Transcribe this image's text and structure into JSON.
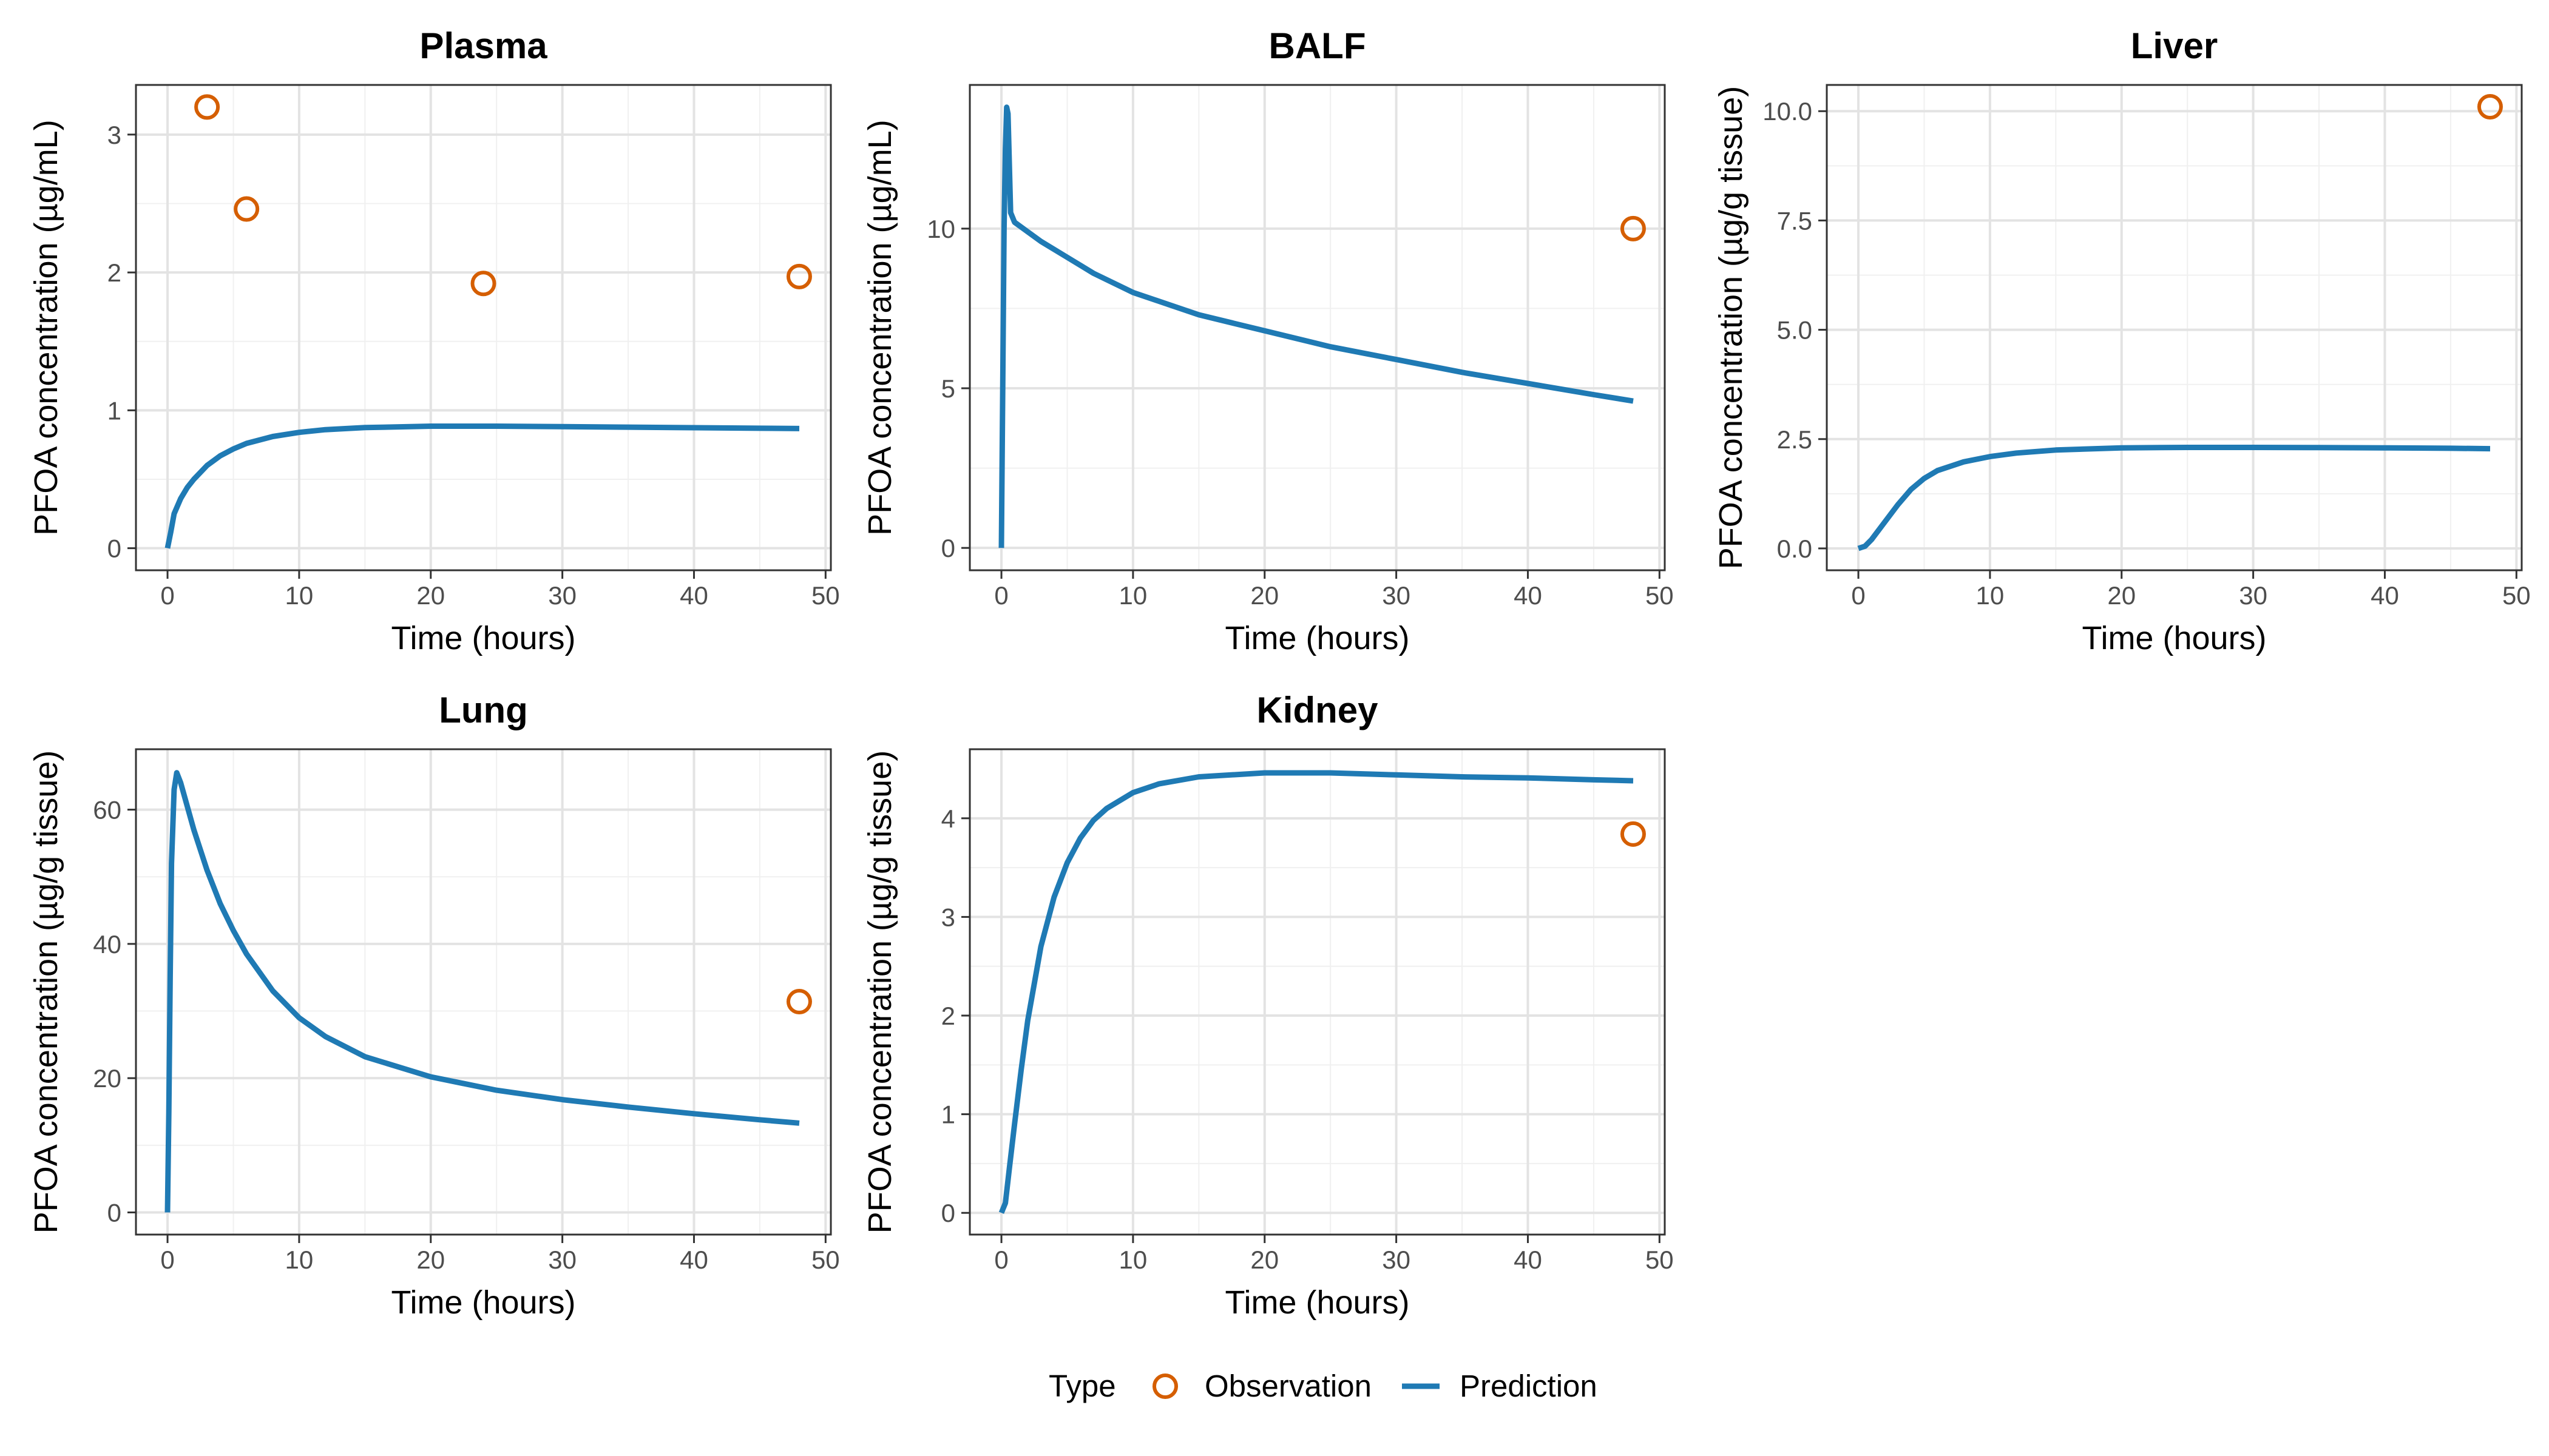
{
  "figure": {
    "legend": {
      "title": "Type",
      "position": "bottom",
      "items": [
        {
          "label": "Observation",
          "kind": "point",
          "color": "#D55E00"
        },
        {
          "label": "Prediction",
          "kind": "line",
          "color": "#1F7AB4"
        }
      ]
    }
  },
  "chart_data": [
    {
      "type": "line",
      "title": "Plasma",
      "xlabel": "Time (hours)",
      "ylabel": "PFOA concentration (µg/mL)",
      "xlim": [
        -2.4,
        50.4
      ],
      "ylim": [
        -0.16,
        3.36
      ],
      "xticks": [
        0,
        10,
        20,
        30,
        40,
        50
      ],
      "xtick_labels": [
        "0",
        "10",
        "20",
        "30",
        "40",
        "50"
      ],
      "yticks": [
        0,
        1,
        2,
        3
      ],
      "ytick_labels": [
        "0",
        "1",
        "2",
        "3"
      ],
      "grid": true,
      "series": [
        {
          "name": "Observation",
          "kind": "points",
          "x": [
            3,
            6,
            24,
            48
          ],
          "y": [
            3.2,
            2.46,
            1.92,
            1.97
          ]
        },
        {
          "name": "Prediction",
          "kind": "line",
          "x": [
            0,
            0.25,
            0.5,
            1,
            1.5,
            2,
            3,
            4,
            5,
            6,
            8,
            10,
            12,
            15,
            20,
            25,
            30,
            35,
            40,
            45,
            48
          ],
          "y": [
            0,
            0.12,
            0.25,
            0.36,
            0.44,
            0.5,
            0.6,
            0.67,
            0.72,
            0.76,
            0.81,
            0.84,
            0.86,
            0.875,
            0.885,
            0.885,
            0.882,
            0.878,
            0.874,
            0.87,
            0.868
          ]
        }
      ]
    },
    {
      "type": "line",
      "title": "BALF",
      "xlabel": "Time (hours)",
      "ylabel": "PFOA concentration (µg/mL)",
      "xlim": [
        -2.4,
        50.4
      ],
      "ylim": [
        -0.7,
        14.5
      ],
      "xticks": [
        0,
        10,
        20,
        30,
        40,
        50
      ],
      "xtick_labels": [
        "0",
        "10",
        "20",
        "30",
        "40",
        "50"
      ],
      "yticks": [
        0,
        5,
        10
      ],
      "ytick_labels": [
        "0",
        "5",
        "10"
      ],
      "grid": true,
      "series": [
        {
          "name": "Observation",
          "kind": "points",
          "x": [
            48
          ],
          "y": [
            10
          ]
        },
        {
          "name": "Prediction",
          "kind": "line",
          "x": [
            0,
            0.1,
            0.2,
            0.3,
            0.4,
            0.5,
            0.7,
            1,
            2,
            3,
            5,
            7,
            10,
            15,
            20,
            25,
            30,
            35,
            40,
            45,
            48
          ],
          "y": [
            0,
            5,
            10,
            12.5,
            13.8,
            13.6,
            10.5,
            10.2,
            9.9,
            9.6,
            9.1,
            8.6,
            8.0,
            7.3,
            6.8,
            6.3,
            5.9,
            5.5,
            5.15,
            4.8,
            4.6
          ]
        }
      ]
    },
    {
      "type": "line",
      "title": "Liver",
      "xlabel": "Time (hours)",
      "ylabel": "PFOA concentration (µg/g tissue)",
      "xlim": [
        -2.4,
        50.4
      ],
      "ylim": [
        -0.5,
        10.6
      ],
      "xticks": [
        0,
        10,
        20,
        30,
        40,
        50
      ],
      "xtick_labels": [
        "0",
        "10",
        "20",
        "30",
        "40",
        "50"
      ],
      "yticks": [
        0,
        2.5,
        5,
        7.5,
        10
      ],
      "ytick_labels": [
        "0.0",
        "2.5",
        "5.0",
        "7.5",
        "10.0"
      ],
      "grid": true,
      "series": [
        {
          "name": "Observation",
          "kind": "points",
          "x": [
            48
          ],
          "y": [
            10.1
          ]
        },
        {
          "name": "Prediction",
          "kind": "line",
          "x": [
            0,
            0.5,
            1,
            2,
            3,
            4,
            5,
            6,
            8,
            10,
            12,
            15,
            20,
            25,
            30,
            35,
            40,
            45,
            48
          ],
          "y": [
            0,
            0.05,
            0.2,
            0.6,
            1.0,
            1.35,
            1.6,
            1.78,
            1.98,
            2.1,
            2.18,
            2.25,
            2.3,
            2.31,
            2.31,
            2.305,
            2.3,
            2.29,
            2.28
          ]
        }
      ]
    },
    {
      "type": "line",
      "title": "Lung",
      "xlabel": "Time (hours)",
      "ylabel": "PFOA concentration (µg/g tissue)",
      "xlim": [
        -2.4,
        50.4
      ],
      "ylim": [
        -3.3,
        69.0
      ],
      "xticks": [
        0,
        10,
        20,
        30,
        40,
        50
      ],
      "xtick_labels": [
        "0",
        "10",
        "20",
        "30",
        "40",
        "50"
      ],
      "yticks": [
        0,
        20,
        40,
        60
      ],
      "ytick_labels": [
        "0",
        "20",
        "40",
        "60"
      ],
      "grid": true,
      "series": [
        {
          "name": "Observation",
          "kind": "points",
          "x": [
            48
          ],
          "y": [
            31.4
          ]
        },
        {
          "name": "Prediction",
          "kind": "line",
          "x": [
            0,
            0.1,
            0.2,
            0.3,
            0.5,
            0.7,
            1,
            2,
            3,
            4,
            5,
            6,
            8,
            10,
            12,
            15,
            20,
            25,
            30,
            35,
            40,
            45,
            48
          ],
          "y": [
            0,
            15,
            35,
            52,
            63,
            65.5,
            64,
            57,
            51,
            46,
            42,
            38.5,
            33,
            29,
            26.2,
            23.2,
            20.2,
            18.2,
            16.8,
            15.7,
            14.7,
            13.8,
            13.3
          ]
        }
      ]
    },
    {
      "type": "line",
      "title": "Kidney",
      "xlabel": "Time (hours)",
      "ylabel": "PFOA concentration (µg/g tissue)",
      "xlim": [
        -2.4,
        50.4
      ],
      "ylim": [
        -0.22,
        4.7
      ],
      "xticks": [
        0,
        10,
        20,
        30,
        40,
        50
      ],
      "xtick_labels": [
        "0",
        "10",
        "20",
        "30",
        "40",
        "50"
      ],
      "yticks": [
        0,
        1,
        2,
        3,
        4
      ],
      "ytick_labels": [
        "0",
        "1",
        "2",
        "3",
        "4"
      ],
      "grid": true,
      "series": [
        {
          "name": "Observation",
          "kind": "points",
          "x": [
            48
          ],
          "y": [
            3.84
          ]
        },
        {
          "name": "Prediction",
          "kind": "line",
          "x": [
            0,
            0.3,
            0.6,
            1,
            1.5,
            2,
            3,
            4,
            5,
            6,
            7,
            8,
            10,
            12,
            15,
            20,
            25,
            30,
            35,
            40,
            45,
            48
          ],
          "y": [
            0,
            0.1,
            0.45,
            0.9,
            1.45,
            1.95,
            2.7,
            3.2,
            3.55,
            3.8,
            3.98,
            4.1,
            4.26,
            4.35,
            4.42,
            4.46,
            4.46,
            4.44,
            4.42,
            4.41,
            4.39,
            4.38
          ]
        }
      ]
    }
  ]
}
